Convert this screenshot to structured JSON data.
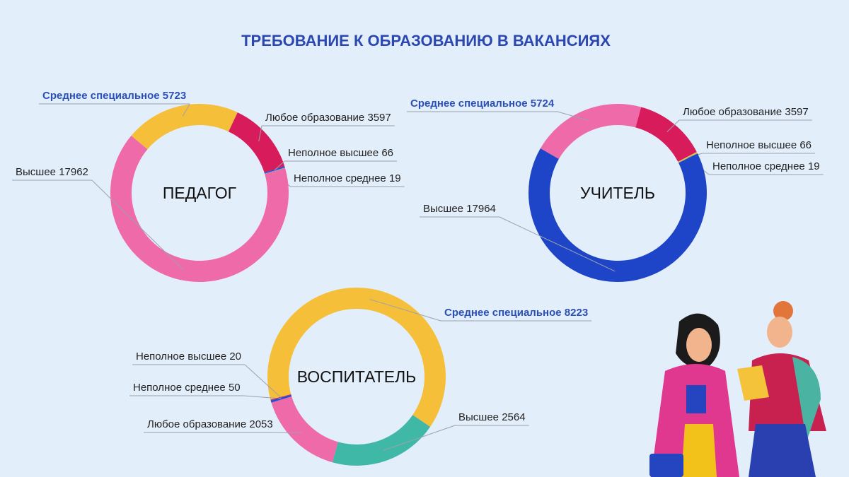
{
  "title": "ТРЕБОВАНИЕ К ОБРАЗОВАНИЮ В ВАКАНСИЯХ",
  "chart_data": [
    {
      "type": "pie",
      "title": "ПЕДАГОГ",
      "categories": [
        "Среднее специальное",
        "Любое образование",
        "Неполное высшее",
        "Неполное среднее",
        "Высшее"
      ],
      "values": [
        5723,
        3597,
        66,
        19,
        17962
      ],
      "colors": [
        "#f5bf3a",
        "#d81b5a",
        "#1e4fd8",
        "#3fb8a8",
        "#ef6aa8"
      ]
    },
    {
      "type": "pie",
      "title": "УЧИТЕЛЬ",
      "categories": [
        "Среднее специальное",
        "Любое образование",
        "Неполное высшее",
        "Неполное среднее",
        "Высшее"
      ],
      "values": [
        5724,
        3597,
        66,
        19,
        17964
      ],
      "colors": [
        "#ef6aa8",
        "#d81b5a",
        "#f5bf3a",
        "#3fb8a8",
        "#1e45c8"
      ]
    },
    {
      "type": "pie",
      "title": "ВОСПИТАТЕЛЬ",
      "categories": [
        "Среднее специальное",
        "Высшее",
        "Любое образование",
        "Неполное среднее",
        "Неполное высшее"
      ],
      "values": [
        8223,
        2564,
        2053,
        50,
        20
      ],
      "colors": [
        "#f5bf3a",
        "#3fb8a8",
        "#ef6aa8",
        "#1e4fd8",
        "#d81b5a"
      ]
    }
  ]
}
